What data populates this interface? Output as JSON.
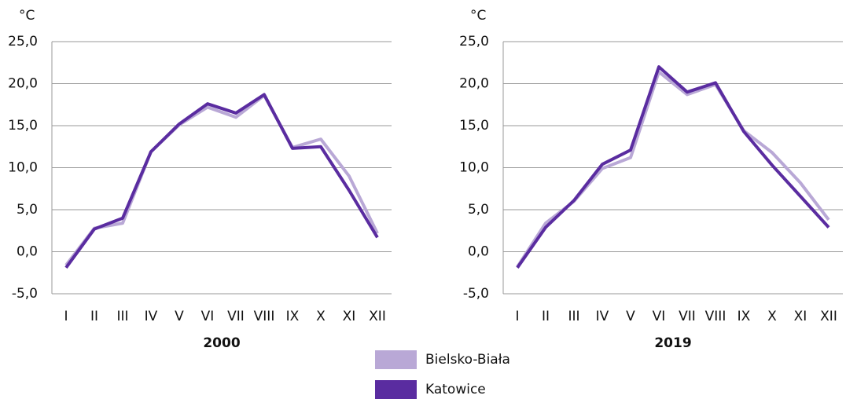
{
  "chart_data": [
    {
      "type": "line",
      "title": "2000",
      "y_label": "°C",
      "categories": [
        "I",
        "II",
        "III",
        "IV",
        "V",
        "VI",
        "VII",
        "VIII",
        "IX",
        "X",
        "XI",
        "XII"
      ],
      "ylim": [
        -5,
        25
      ],
      "yticks": [
        {
          "value": -5,
          "label": "-5,0"
        },
        {
          "value": 0,
          "label": "0,0"
        },
        {
          "value": 5,
          "label": "5,0"
        },
        {
          "value": 10,
          "label": "10,0"
        },
        {
          "value": 15,
          "label": "15,0"
        },
        {
          "value": 20,
          "label": "20,0"
        },
        {
          "value": 25,
          "label": "25,0"
        }
      ],
      "grid": true,
      "series": [
        {
          "name": "Bielsko-Biała",
          "color": "#b9a8d6",
          "values": [
            -1.6,
            2.8,
            3.4,
            11.9,
            15.1,
            17.2,
            16.0,
            18.6,
            12.4,
            13.4,
            9.0,
            2.2
          ]
        },
        {
          "name": "Katowice",
          "color": "#5a2ca0",
          "values": [
            -1.9,
            2.7,
            4.0,
            11.9,
            15.2,
            17.6,
            16.5,
            18.7,
            12.3,
            12.5,
            7.3,
            1.7
          ]
        }
      ]
    },
    {
      "type": "line",
      "title": "2019",
      "y_label": "°C",
      "categories": [
        "I",
        "II",
        "III",
        "IV",
        "V",
        "VI",
        "VII",
        "VIII",
        "IX",
        "X",
        "XI",
        "XII"
      ],
      "ylim": [
        -5,
        25
      ],
      "yticks": [
        {
          "value": -5,
          "label": "-5,0"
        },
        {
          "value": 0,
          "label": "0,0"
        },
        {
          "value": 5,
          "label": "5,0"
        },
        {
          "value": 10,
          "label": "10,0"
        },
        {
          "value": 15,
          "label": "15,0"
        },
        {
          "value": 20,
          "label": "20,0"
        },
        {
          "value": 25,
          "label": "25,0"
        }
      ],
      "grid": true,
      "series": [
        {
          "color": "#b9a8d6",
          "values": [
            -1.8,
            3.4,
            6.0,
            9.9,
            11.2,
            21.4,
            18.7,
            19.9,
            14.4,
            11.8,
            8.2,
            3.8
          ]
        },
        {
          "color": "#5a2ca0",
          "values": [
            -1.9,
            2.9,
            6.1,
            10.4,
            12.1,
            22.0,
            19.0,
            20.1,
            14.3,
            10.3,
            6.6,
            2.9
          ]
        }
      ]
    }
  ]
}
